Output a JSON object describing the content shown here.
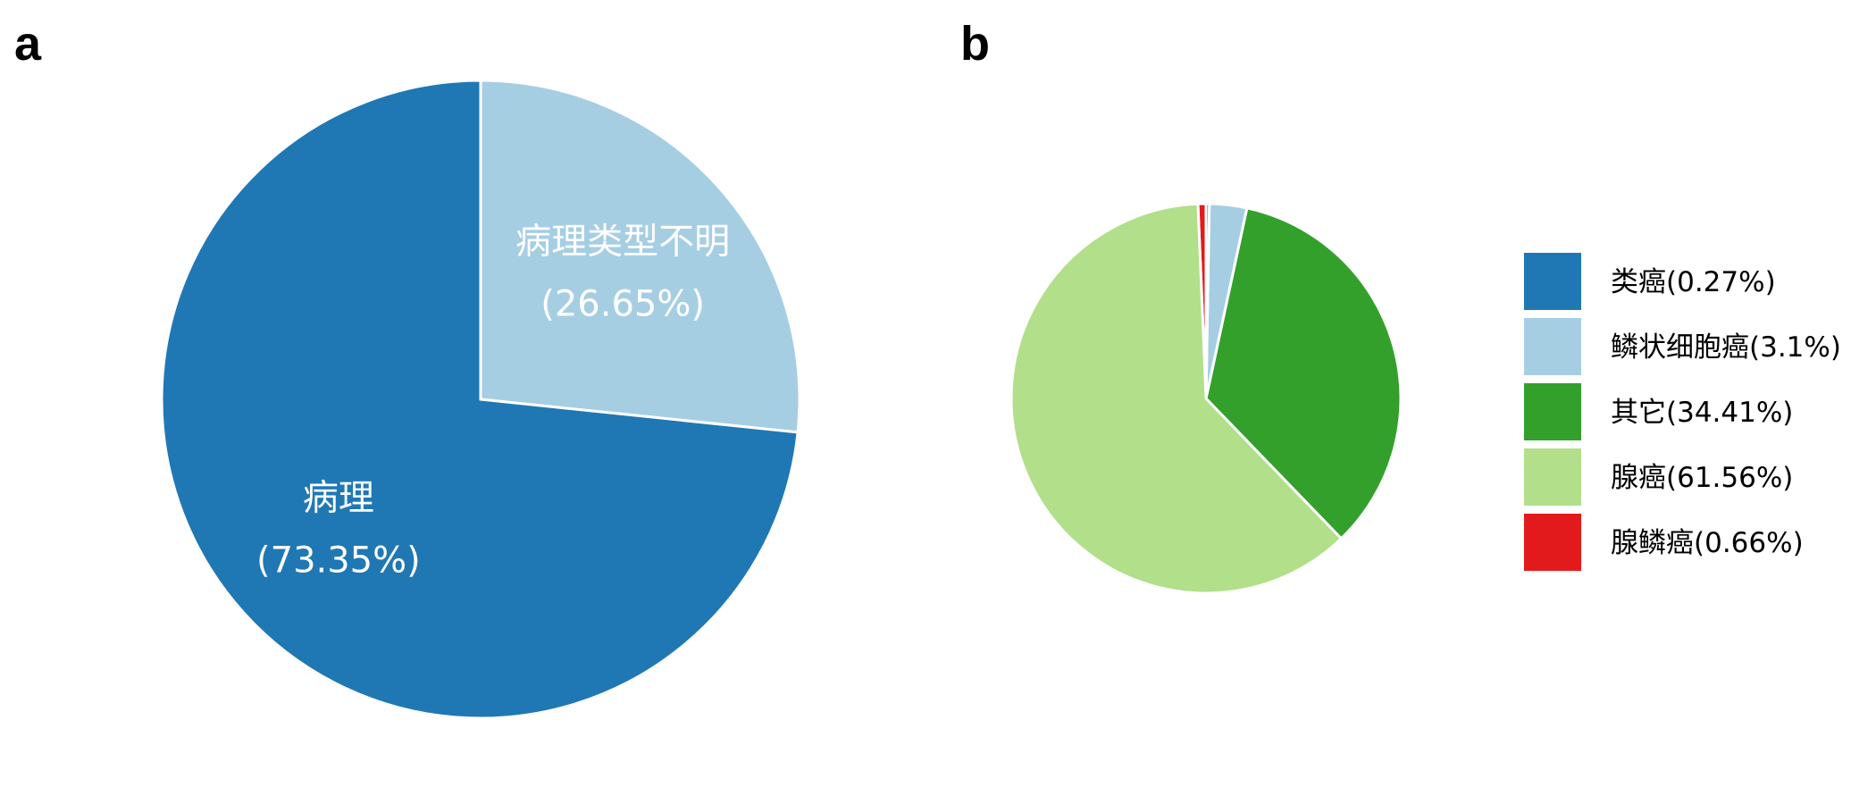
{
  "panels": {
    "a": {
      "letter": "a"
    },
    "b": {
      "letter": "b"
    }
  },
  "chart_data": [
    {
      "type": "pie",
      "panel": "a",
      "start_angle_deg": 0,
      "direction": "clockwise",
      "slices": [
        {
          "label": "病理类型不明",
          "pct_text": "(26.65%)",
          "value": 26.65,
          "color": "#A6CEE3"
        },
        {
          "label": "病理",
          "pct_text": "(73.35%)",
          "value": 73.35,
          "color": "#1F78B4"
        }
      ],
      "labels_on_slices": true,
      "legend": "none"
    },
    {
      "type": "pie",
      "panel": "b",
      "start_angle_deg": 0,
      "direction": "clockwise",
      "slices": [
        {
          "label": "类癌(0.27%)",
          "value": 0.27,
          "color": "#1F78B4"
        },
        {
          "label": "鳞状细胞癌(3.1%)",
          "value": 3.1,
          "color": "#A6CEE3"
        },
        {
          "label": "其它(34.41%)",
          "value": 34.41,
          "color": "#33A02C"
        },
        {
          "label": "腺癌(61.56%)",
          "value": 61.56,
          "color": "#B2DF8A"
        },
        {
          "label": "腺鳞癌(0.66%)",
          "value": 0.66,
          "color": "#E31A1C"
        }
      ],
      "slice_draw_order": [
        4,
        3,
        2,
        1,
        0
      ],
      "labels_on_slices": false,
      "legend": "right"
    }
  ]
}
